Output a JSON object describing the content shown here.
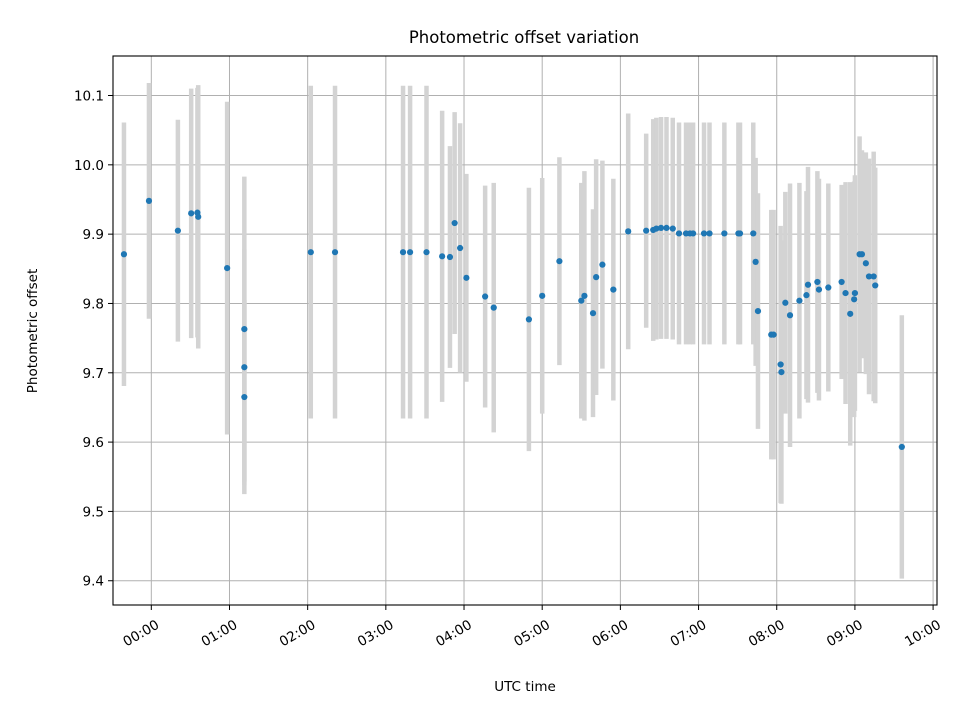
{
  "chart_data": {
    "type": "scatter",
    "title": "Photometric offset variation",
    "xlabel": "UTC time",
    "ylabel": "Photometric offset",
    "grid": true,
    "xlim": [
      -0.49,
      10.05
    ],
    "ylim": [
      9.365,
      10.157
    ],
    "x_ticks": [
      {
        "value": 0,
        "label": "00:00"
      },
      {
        "value": 1,
        "label": "01:00"
      },
      {
        "value": 2,
        "label": "02:00"
      },
      {
        "value": 3,
        "label": "03:00"
      },
      {
        "value": 4,
        "label": "04:00"
      },
      {
        "value": 5,
        "label": "05:00"
      },
      {
        "value": 6,
        "label": "06:00"
      },
      {
        "value": 7,
        "label": "07:00"
      },
      {
        "value": 8,
        "label": "08:00"
      },
      {
        "value": 9,
        "label": "09:00"
      },
      {
        "value": 10,
        "label": "10:00"
      }
    ],
    "y_ticks": [
      {
        "value": 9.4,
        "label": "9.4"
      },
      {
        "value": 9.5,
        "label": "9.5"
      },
      {
        "value": 9.6,
        "label": "9.6"
      },
      {
        "value": 9.7,
        "label": "9.7"
      },
      {
        "value": 9.8,
        "label": "9.8"
      },
      {
        "value": 9.9,
        "label": "9.9"
      },
      {
        "value": 10.0,
        "label": "10.0"
      },
      {
        "value": 10.1,
        "label": "10.1"
      }
    ],
    "colors": {
      "points": "#1f77b4",
      "errorbars": "#d3d3d3",
      "grid": "#b0b0b0",
      "axes": "#000000"
    },
    "series": [
      {
        "name": "offset",
        "x": [
          -0.35,
          -0.03,
          0.34,
          0.51,
          0.59,
          0.6,
          0.97,
          1.19,
          1.19,
          1.19,
          2.04,
          2.35,
          3.22,
          3.31,
          3.52,
          3.72,
          3.82,
          3.88,
          3.95,
          4.03,
          4.27,
          4.38,
          4.83,
          5.0,
          5.22,
          5.5,
          5.54,
          5.65,
          5.69,
          5.77,
          5.91,
          6.1,
          6.33,
          6.42,
          6.46,
          6.52,
          6.59,
          6.67,
          6.75,
          6.84,
          6.89,
          6.93,
          7.07,
          7.14,
          7.33,
          7.51,
          7.53,
          7.7,
          7.73,
          7.76,
          7.93,
          7.96,
          8.05,
          8.06,
          8.11,
          8.17,
          8.29,
          8.38,
          8.4,
          8.52,
          8.54,
          8.66,
          8.83,
          8.88,
          8.94,
          8.99,
          9.0,
          9.06,
          9.09,
          9.14,
          9.18,
          9.24,
          9.26,
          9.6
        ],
        "y": [
          9.871,
          9.948,
          9.905,
          9.93,
          9.931,
          9.925,
          9.851,
          9.763,
          9.708,
          9.665,
          9.874,
          9.874,
          9.874,
          9.874,
          9.874,
          9.868,
          9.867,
          9.916,
          9.88,
          9.837,
          9.81,
          9.794,
          9.777,
          9.811,
          9.861,
          9.804,
          9.811,
          9.786,
          9.838,
          9.856,
          9.82,
          9.904,
          9.905,
          9.906,
          9.908,
          9.909,
          9.909,
          9.908,
          9.901,
          9.901,
          9.901,
          9.901,
          9.901,
          9.901,
          9.901,
          9.901,
          9.901,
          9.901,
          9.86,
          9.789,
          9.755,
          9.755,
          9.712,
          9.701,
          9.801,
          9.783,
          9.804,
          9.812,
          9.827,
          9.831,
          9.82,
          9.823,
          9.831,
          9.815,
          9.785,
          9.806,
          9.815,
          9.871,
          9.871,
          9.858,
          9.839,
          9.839,
          9.826,
          9.593
        ],
        "err": [
          0.19,
          0.17,
          0.16,
          0.18,
          0.18,
          0.19,
          0.24,
          0.22,
          0.17,
          0.14,
          0.24,
          0.24,
          0.24,
          0.24,
          0.24,
          0.21,
          0.16,
          0.16,
          0.18,
          0.15,
          0.16,
          0.18,
          0.19,
          0.17,
          0.15,
          0.17,
          0.18,
          0.15,
          0.17,
          0.15,
          0.16,
          0.17,
          0.14,
          0.16,
          0.16,
          0.16,
          0.16,
          0.16,
          0.16,
          0.16,
          0.16,
          0.16,
          0.16,
          0.16,
          0.16,
          0.16,
          0.16,
          0.16,
          0.15,
          0.17,
          0.18,
          0.18,
          0.2,
          0.19,
          0.16,
          0.19,
          0.17,
          0.15,
          0.17,
          0.16,
          0.16,
          0.15,
          0.14,
          0.16,
          0.19,
          0.17,
          0.17,
          0.17,
          0.15,
          0.16,
          0.17,
          0.18,
          0.17,
          0.19
        ]
      }
    ]
  }
}
